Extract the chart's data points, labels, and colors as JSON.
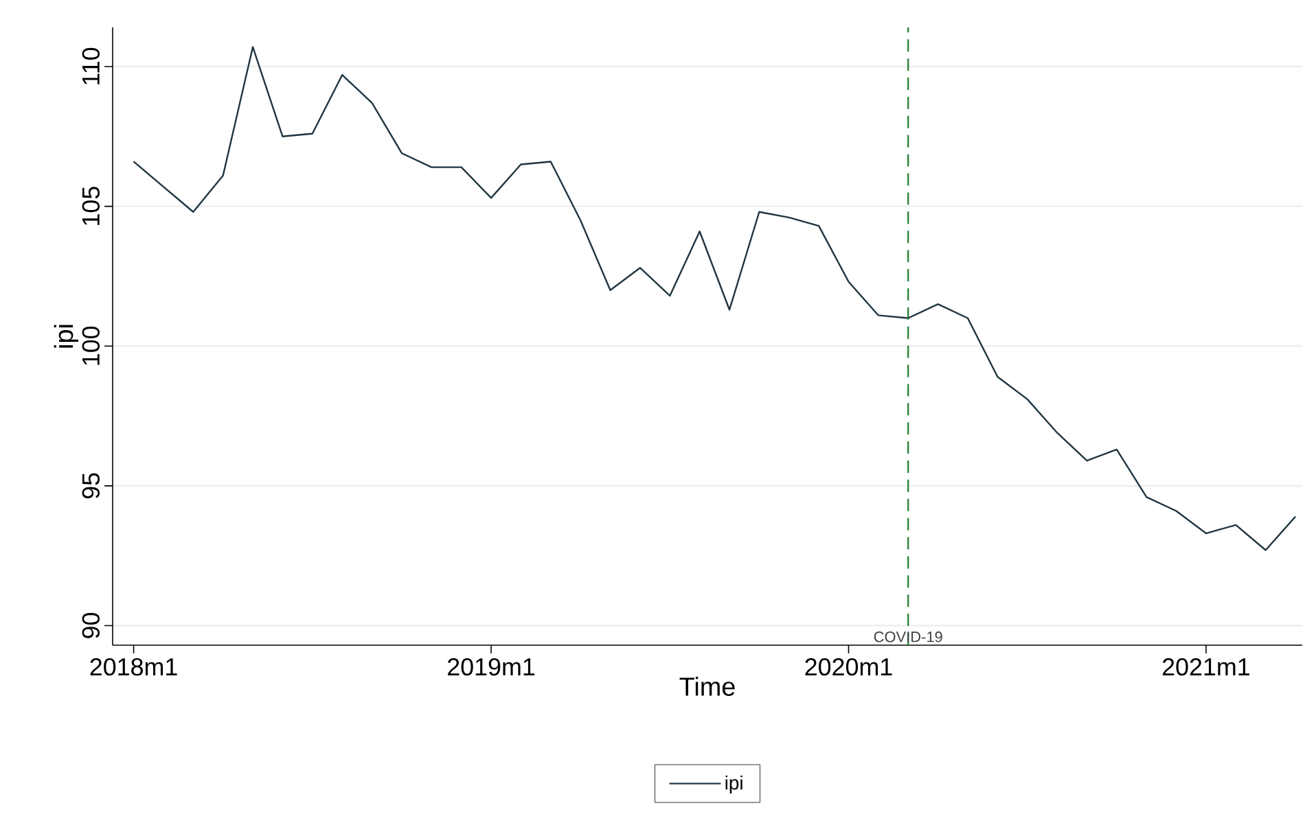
{
  "chart_data": {
    "type": "line",
    "xlabel": "Time",
    "ylabel": "ipi",
    "x": [
      "2018-01",
      "2018-02",
      "2018-03",
      "2018-04",
      "2018-05",
      "2018-06",
      "2018-07",
      "2018-08",
      "2018-09",
      "2018-10",
      "2018-11",
      "2018-12",
      "2019-01",
      "2019-02",
      "2019-03",
      "2019-04",
      "2019-05",
      "2019-06",
      "2019-07",
      "2019-08",
      "2019-09",
      "2019-10",
      "2019-11",
      "2019-12",
      "2020-01",
      "2020-02",
      "2020-03",
      "2020-04",
      "2020-05",
      "2020-06",
      "2020-07",
      "2020-08",
      "2020-09",
      "2020-10",
      "2020-11",
      "2020-12",
      "2021-01",
      "2021-02",
      "2021-03",
      "2021-04"
    ],
    "series": [
      {
        "name": "ipi",
        "color": "#1f3440",
        "values": [
          106.6,
          105.7,
          104.8,
          106.1,
          110.7,
          107.5,
          107.6,
          109.7,
          108.7,
          106.9,
          106.4,
          106.4,
          105.3,
          106.5,
          106.6,
          104.5,
          102.0,
          102.8,
          101.8,
          104.1,
          101.3,
          104.8,
          104.6,
          104.3,
          102.3,
          101.1,
          101.0,
          101.5,
          101.0,
          98.9,
          98.1,
          96.9,
          95.9,
          96.3,
          94.6,
          94.1,
          93.3,
          93.6,
          92.7,
          93.9
        ]
      }
    ],
    "xlim": [
      "2017-12-10",
      "2021-04-08"
    ],
    "xticks": [
      {
        "value": "2019-01",
        "label": "2019m1"
      },
      {
        "value": "2018-01",
        "label": "2018m1"
      },
      {
        "value": "2020-01",
        "label": "2020m1"
      },
      {
        "value": "2021-01",
        "label": "2021m1"
      }
    ],
    "ylim": [
      89.3,
      111.4
    ],
    "yticks": [
      90,
      95,
      100,
      105,
      110
    ],
    "grid": "y",
    "legend": "bottom",
    "ref_lines": [
      {
        "axis": "x",
        "value": "2020-03",
        "label": "COVID-19",
        "color": "#1a7a2a",
        "line_style": "dashed"
      }
    ]
  }
}
